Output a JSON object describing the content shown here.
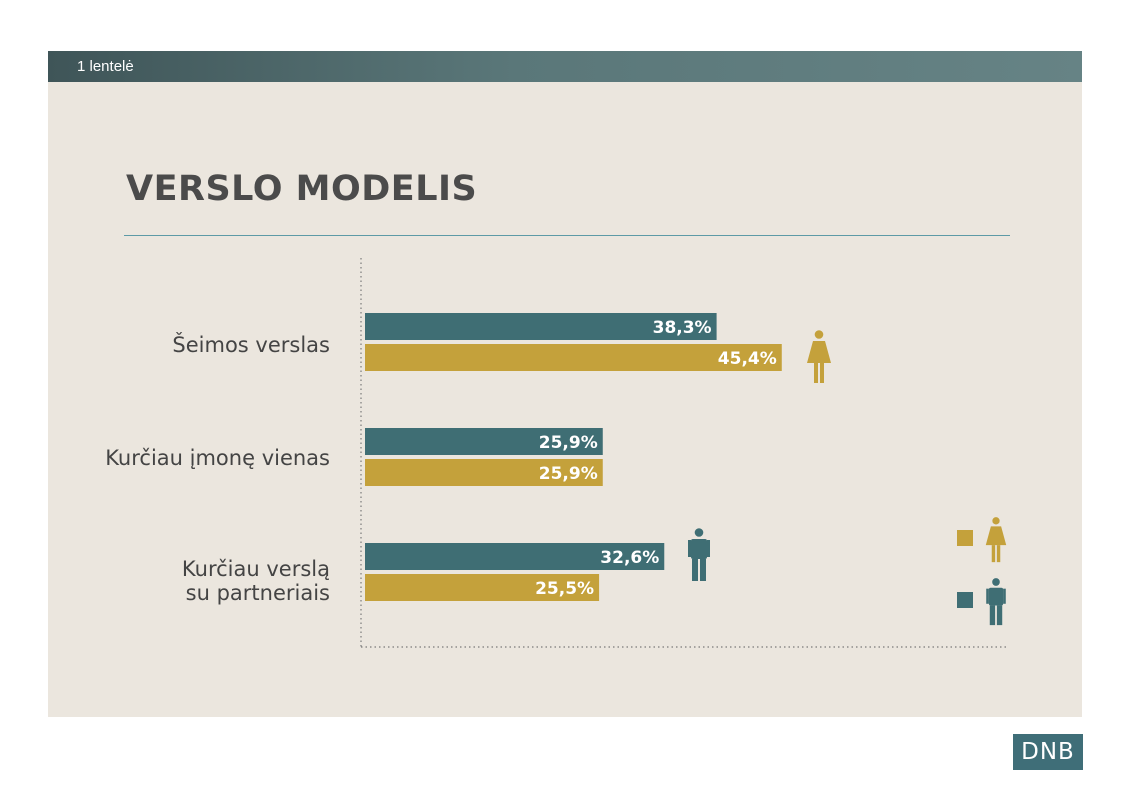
{
  "header": {
    "label": "1 lentelė"
  },
  "chart_title": "VERSLO MODELIS",
  "colors": {
    "male": "#3f6e74",
    "female": "#c4a13b"
  },
  "legend": {
    "placement": "right",
    "items": [
      {
        "series": "female",
        "icon": "female-icon"
      },
      {
        "series": "male",
        "icon": "male-icon"
      }
    ]
  },
  "chart_data": {
    "type": "bar",
    "orientation": "horizontal",
    "title": "VERSLO MODELIS",
    "categories": [
      "Šeimos verslas",
      "Kurčiau įmonę vienas",
      "Kurčiau verslą su partneriais"
    ],
    "category_lines": [
      [
        "Šeimos verslas"
      ],
      [
        "Kurčiau įmonę vienas"
      ],
      [
        "Kurčiau verslą",
        "su partneriais"
      ]
    ],
    "series": [
      {
        "key": "male",
        "values": [
          38.3,
          25.9,
          32.6
        ],
        "labels": [
          "38,3%",
          "25,9%",
          "32,6%"
        ]
      },
      {
        "key": "female",
        "values": [
          45.4,
          25.9,
          25.5
        ],
        "labels": [
          "45,4%",
          "25,9%",
          "25,5%"
        ]
      }
    ],
    "xlim": [
      0,
      70
    ],
    "grid": false
  },
  "logo": {
    "text": "DNB"
  }
}
